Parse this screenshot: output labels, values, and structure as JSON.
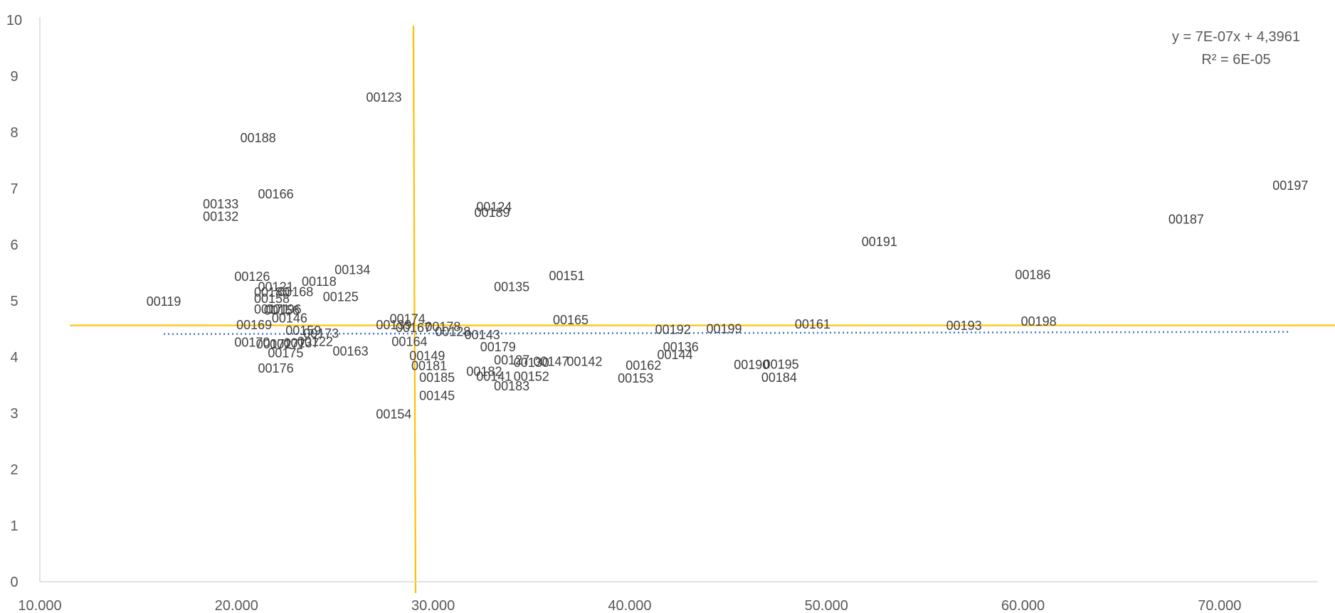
{
  "chart_data": {
    "type": "scatter",
    "title": "",
    "xlabel": "",
    "ylabel": "",
    "xlim": [
      10000,
      75000
    ],
    "ylim": [
      0,
      10
    ],
    "x_ticks": [
      10000,
      20000,
      30000,
      40000,
      50000,
      60000,
      70000
    ],
    "x_tick_labels": [
      "10.000",
      "20.000",
      "30.000",
      "40.000",
      "50.000",
      "60.000",
      "70.000"
    ],
    "y_ticks": [
      0,
      1,
      2,
      3,
      4,
      5,
      6,
      7,
      8,
      9,
      10
    ],
    "y_tick_labels": [
      "0",
      "1",
      "2",
      "3",
      "4",
      "5",
      "6",
      "7",
      "8",
      "9",
      "10"
    ],
    "grid": false,
    "marker_visible": false,
    "colors": {
      "reference_lines": "#FFC000",
      "trendline": "#4472C4",
      "axis": "#D9D9D9",
      "text": "#595959",
      "labels": "#404040"
    },
    "points": [
      {
        "label": "00118",
        "x": 24200,
        "y": 5.34
      },
      {
        "label": "00119",
        "x": 16300,
        "y": 4.99
      },
      {
        "label": "00121",
        "x": 22000,
        "y": 5.25
      },
      {
        "label": "00122",
        "x": 24000,
        "y": 4.27
      },
      {
        "label": "00123",
        "x": 27500,
        "y": 8.62
      },
      {
        "label": "00124",
        "x": 33100,
        "y": 6.67
      },
      {
        "label": "00125",
        "x": 25300,
        "y": 5.07
      },
      {
        "label": "00126",
        "x": 20800,
        "y": 5.43
      },
      {
        "label": "00127",
        "x": 34000,
        "y": 3.94
      },
      {
        "label": "00128",
        "x": 31000,
        "y": 4.45
      },
      {
        "label": "00130",
        "x": 35000,
        "y": 3.9
      },
      {
        "label": "00132",
        "x": 19200,
        "y": 6.5
      },
      {
        "label": "00133",
        "x": 19200,
        "y": 6.72
      },
      {
        "label": "00134",
        "x": 25900,
        "y": 5.55
      },
      {
        "label": "00135",
        "x": 34000,
        "y": 5.25
      },
      {
        "label": "00136",
        "x": 42600,
        "y": 4.18
      },
      {
        "label": "00137",
        "x": 23300,
        "y": 4.25
      },
      {
        "label": "00139",
        "x": 28000,
        "y": 4.57
      },
      {
        "label": "00141",
        "x": 33100,
        "y": 3.65
      },
      {
        "label": "00142",
        "x": 37700,
        "y": 3.92
      },
      {
        "label": "00143",
        "x": 32500,
        "y": 4.39
      },
      {
        "label": "00144",
        "x": 42300,
        "y": 4.04
      },
      {
        "label": "00145",
        "x": 30200,
        "y": 3.31
      },
      {
        "label": "00146",
        "x": 22700,
        "y": 4.69
      },
      {
        "label": "00147",
        "x": 36000,
        "y": 3.92
      },
      {
        "label": "00149",
        "x": 29700,
        "y": 4.02
      },
      {
        "label": "00151",
        "x": 36800,
        "y": 5.44
      },
      {
        "label": "00152",
        "x": 35000,
        "y": 3.65
      },
      {
        "label": "00153",
        "x": 40300,
        "y": 3.62
      },
      {
        "label": "00154",
        "x": 28000,
        "y": 2.98
      },
      {
        "label": "00156",
        "x": 22300,
        "y": 4.83
      },
      {
        "label": "00158",
        "x": 21800,
        "y": 5.04
      },
      {
        "label": "00159",
        "x": 23400,
        "y": 4.47
      },
      {
        "label": "00161",
        "x": 49300,
        "y": 4.58
      },
      {
        "label": "00162",
        "x": 40700,
        "y": 3.85
      },
      {
        "label": "00163",
        "x": 25800,
        "y": 4.1
      },
      {
        "label": "00164",
        "x": 28800,
        "y": 4.27
      },
      {
        "label": "00165",
        "x": 37000,
        "y": 4.66
      },
      {
        "label": "00166",
        "x": 22000,
        "y": 6.9
      },
      {
        "label": "00167",
        "x": 29000,
        "y": 4.52
      },
      {
        "label": "00168",
        "x": 23000,
        "y": 5.16
      },
      {
        "label": "00169",
        "x": 20900,
        "y": 4.57
      },
      {
        "label": "00170",
        "x": 20800,
        "y": 4.26
      },
      {
        "label": "00171",
        "x": 21800,
        "y": 4.85
      },
      {
        "label": "00172",
        "x": 21900,
        "y": 4.23
      },
      {
        "label": "00173",
        "x": 24300,
        "y": 4.42
      },
      {
        "label": "00174",
        "x": 28700,
        "y": 4.68
      },
      {
        "label": "00175",
        "x": 22500,
        "y": 4.07
      },
      {
        "label": "00176",
        "x": 22000,
        "y": 3.8
      },
      {
        "label": "00177",
        "x": 22600,
        "y": 4.23
      },
      {
        "label": "00178",
        "x": 30500,
        "y": 4.54
      },
      {
        "label": "00179",
        "x": 33300,
        "y": 4.18
      },
      {
        "label": "00180",
        "x": 21800,
        "y": 5.15
      },
      {
        "label": "00181",
        "x": 29800,
        "y": 3.84
      },
      {
        "label": "00182",
        "x": 32600,
        "y": 3.74
      },
      {
        "label": "00183",
        "x": 34000,
        "y": 3.48
      },
      {
        "label": "00184",
        "x": 47600,
        "y": 3.63
      },
      {
        "label": "00185",
        "x": 30200,
        "y": 3.63
      },
      {
        "label": "00186",
        "x": 60500,
        "y": 5.46
      },
      {
        "label": "00187",
        "x": 68300,
        "y": 6.45
      },
      {
        "label": "00188",
        "x": 21100,
        "y": 7.9
      },
      {
        "label": "00189",
        "x": 33000,
        "y": 6.57
      },
      {
        "label": "00190",
        "x": 46200,
        "y": 3.86
      },
      {
        "label": "00191",
        "x": 52700,
        "y": 6.05
      },
      {
        "label": "00192",
        "x": 42200,
        "y": 4.49
      },
      {
        "label": "00193",
        "x": 57000,
        "y": 4.56
      },
      {
        "label": "00195",
        "x": 47700,
        "y": 3.87
      },
      {
        "label": "00196",
        "x": 22400,
        "y": 4.85
      },
      {
        "label": "00197",
        "x": 73600,
        "y": 7.05
      },
      {
        "label": "00198",
        "x": 60800,
        "y": 4.63
      },
      {
        "label": "00199",
        "x": 44800,
        "y": 4.5
      }
    ],
    "reference_lines": {
      "vertical_x": 29000,
      "horizontal_y": 4.55
    },
    "trendline": {
      "type": "linear",
      "style": "dotted",
      "x_range": [
        16300,
        73600
      ],
      "equation": "y = 7E-07x + 4,3961",
      "r_squared": "R² = 6E-05"
    }
  }
}
